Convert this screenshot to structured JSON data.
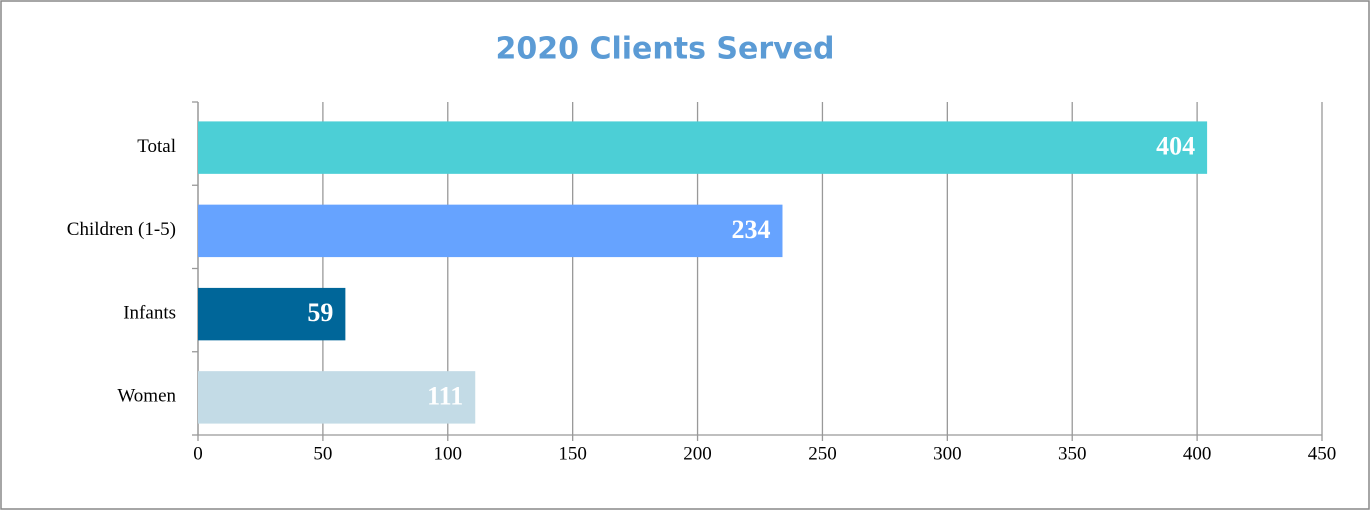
{
  "chart_data": {
    "type": "bar",
    "orientation": "horizontal",
    "title": "2020 Clients Served",
    "categories": [
      "Total",
      "Children (1-5)",
      "Infants",
      "Women"
    ],
    "values": [
      404,
      234,
      59,
      111
    ],
    "colors": [
      "#4ccfd6",
      "#66a3ff",
      "#006699",
      "#c3dbe6"
    ],
    "xlim": [
      0,
      450
    ],
    "xticks": [
      0,
      50,
      100,
      150,
      200,
      250,
      300,
      350,
      400,
      450
    ],
    "grid": true
  }
}
